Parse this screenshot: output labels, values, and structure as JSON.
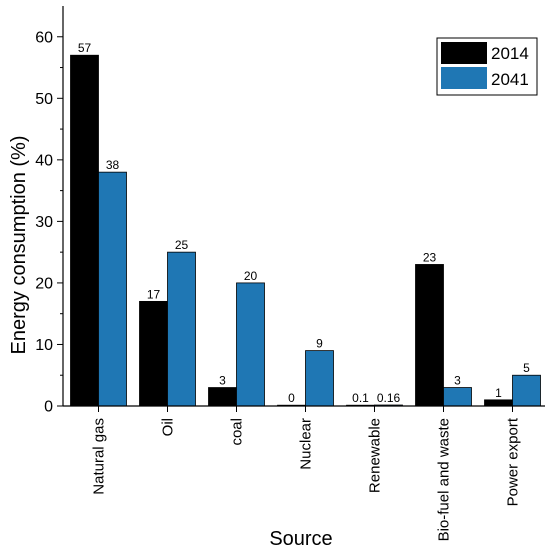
{
  "chart_data": {
    "type": "bar",
    "categories": [
      "Natural gas",
      "Oil",
      "coal",
      "Nuclear",
      "Renewable",
      "Bio-fuel and waste",
      "Power export"
    ],
    "series": [
      {
        "name": "2014",
        "color": "#000000",
        "values": [
          57,
          17,
          3,
          0,
          0.1,
          23,
          1
        ],
        "labels": [
          "57",
          "17",
          "3",
          "0",
          "0.1",
          "23",
          "1"
        ]
      },
      {
        "name": "2041",
        "color": "#1f77b4",
        "values": [
          38,
          25,
          20,
          9,
          0.16,
          3,
          5
        ],
        "labels": [
          "38",
          "25",
          "20",
          "9",
          "0.16",
          "3",
          "5"
        ]
      }
    ],
    "xlabel": "Source",
    "ylabel": "Energy consumption (%)",
    "ylim": [
      0,
      65
    ],
    "yticks": [
      0,
      10,
      20,
      30,
      40,
      50,
      60
    ],
    "legend_position": "top-right",
    "grid": false
  }
}
